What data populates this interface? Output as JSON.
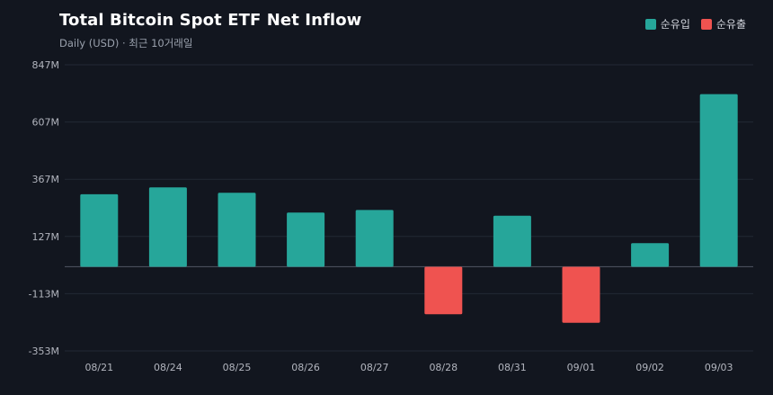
{
  "header": {
    "title": "Total Bitcoin Spot ETF Net Inflow",
    "subtitle": "Daily (USD) · 최근 10거래일"
  },
  "legend": {
    "inflow_label": "순유입",
    "outflow_label": "순유출",
    "inflow_color": "#26a69a",
    "outflow_color": "#ef5350"
  },
  "chart_data": {
    "type": "bar",
    "title": "Total Bitcoin Spot ETF Net Inflow",
    "subtitle": "Daily (USD) · 최근 10거래일",
    "categories": [
      "08/21",
      "08/24",
      "08/25",
      "08/26",
      "08/27",
      "08/28",
      "08/31",
      "09/01",
      "09/02",
      "09/03"
    ],
    "values": [
      304,
      333,
      310,
      227,
      238,
      -199,
      214,
      -235,
      99,
      724
    ],
    "unit": "M",
    "ylim": [
      -353,
      847
    ],
    "yticks": [
      847,
      607,
      367,
      127,
      -113,
      -353
    ],
    "ytick_labels": [
      "847M",
      "607M",
      "367M",
      "127M",
      "-113M",
      "-353M"
    ],
    "grid": true,
    "legend_position": "top-right",
    "positive_color": "#26a69a",
    "negative_color": "#ef5350"
  }
}
